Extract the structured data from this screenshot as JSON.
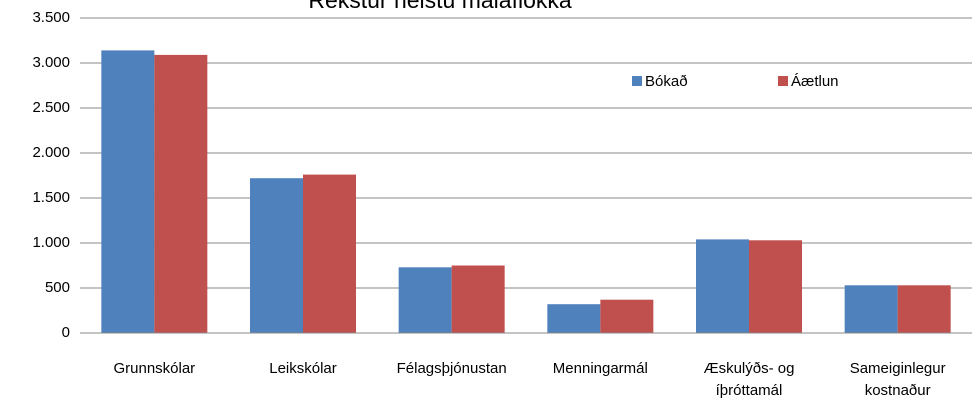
{
  "chart_data": {
    "type": "bar",
    "title": "Rekstur helstu málaflokka",
    "categories": [
      "Grunnskólar",
      "Leikskólar",
      "Félagsþjónustan",
      "Menningarmál",
      "Æskulýðs- og\níþróttamál",
      "Sameiginlegur\nkostnaður"
    ],
    "series": [
      {
        "name": "Bókað",
        "color": "#4f81bd",
        "values": [
          3140,
          1720,
          730,
          320,
          1040,
          530
        ]
      },
      {
        "name": "Áætlun",
        "color": "#c0504d",
        "values": [
          3090,
          1760,
          750,
          370,
          1030,
          530
        ]
      }
    ],
    "ylim": [
      0,
      3500
    ],
    "yticks": [
      0,
      500,
      {
        "value": 1000,
        "label": "1.000"
      },
      {
        "value": 1500,
        "label": "1.500"
      },
      {
        "value": 2000,
        "label": "2.000"
      },
      {
        "value": 2500,
        "label": "2.500"
      },
      {
        "value": 3000,
        "label": "3.000"
      },
      {
        "value": 3500,
        "label": "3.500"
      }
    ],
    "grid": true,
    "legend": "top-right"
  }
}
